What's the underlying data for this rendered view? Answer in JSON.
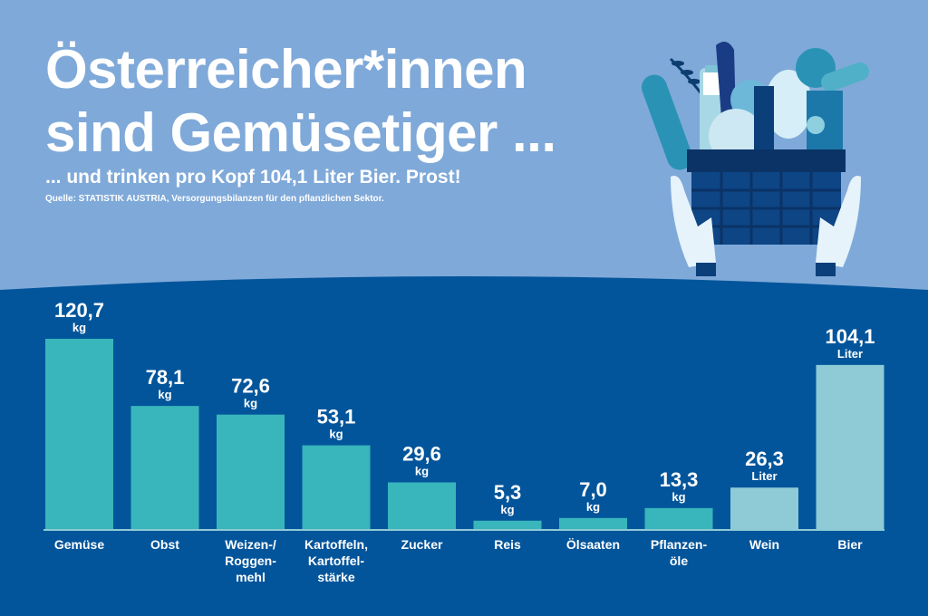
{
  "header": {
    "title_line1": "Österreicher*innen",
    "title_line2": "sind Gemüsetiger ...",
    "subtitle": "... und trinken pro Kopf 104,1 Liter Bier. Prost!",
    "source": "Quelle: STATISTIK AUSTRIA, Versorgungsbilanzen für den pflanzlichen Sektor."
  },
  "illustration": {
    "icon": "basket-of-groceries-held-by-hands-icon"
  },
  "colors": {
    "background_top": "#7fa9d9",
    "background_bottom": "#03559b",
    "bar_food": "#38b6bb",
    "bar_drink": "#8ecbd6",
    "text": "#ffffff"
  },
  "chart_data": {
    "type": "bar",
    "title": "Österreicher*innen sind Gemüsetiger ...",
    "xlabel": "",
    "ylabel": "",
    "grid": false,
    "ylim": [
      0,
      125
    ],
    "categories": [
      [
        "Gemüse"
      ],
      [
        "Obst"
      ],
      [
        "Weizen-/",
        "Roggen-",
        "mehl"
      ],
      [
        "Kartoffeln,",
        "Kartoffel-",
        "stärke"
      ],
      [
        "Zucker"
      ],
      [
        "Reis"
      ],
      [
        "Ölsaaten"
      ],
      [
        "Pflanzen-",
        "öle"
      ],
      [
        "Wein"
      ],
      [
        "Bier"
      ]
    ],
    "values": [
      120.7,
      78.1,
      72.6,
      53.1,
      29.6,
      5.3,
      7.0,
      13.3,
      26.3,
      104.1
    ],
    "value_labels": [
      "120,7",
      "78,1",
      "72,6",
      "53,1",
      "29,6",
      "5,3",
      "7,0",
      "13,3",
      "26,3",
      "104,1"
    ],
    "units": [
      "kg",
      "kg",
      "kg",
      "kg",
      "kg",
      "kg",
      "kg",
      "kg",
      "Liter",
      "Liter"
    ],
    "bar_kind": [
      "food",
      "food",
      "food",
      "food",
      "food",
      "food",
      "food",
      "food",
      "drink",
      "drink"
    ]
  }
}
